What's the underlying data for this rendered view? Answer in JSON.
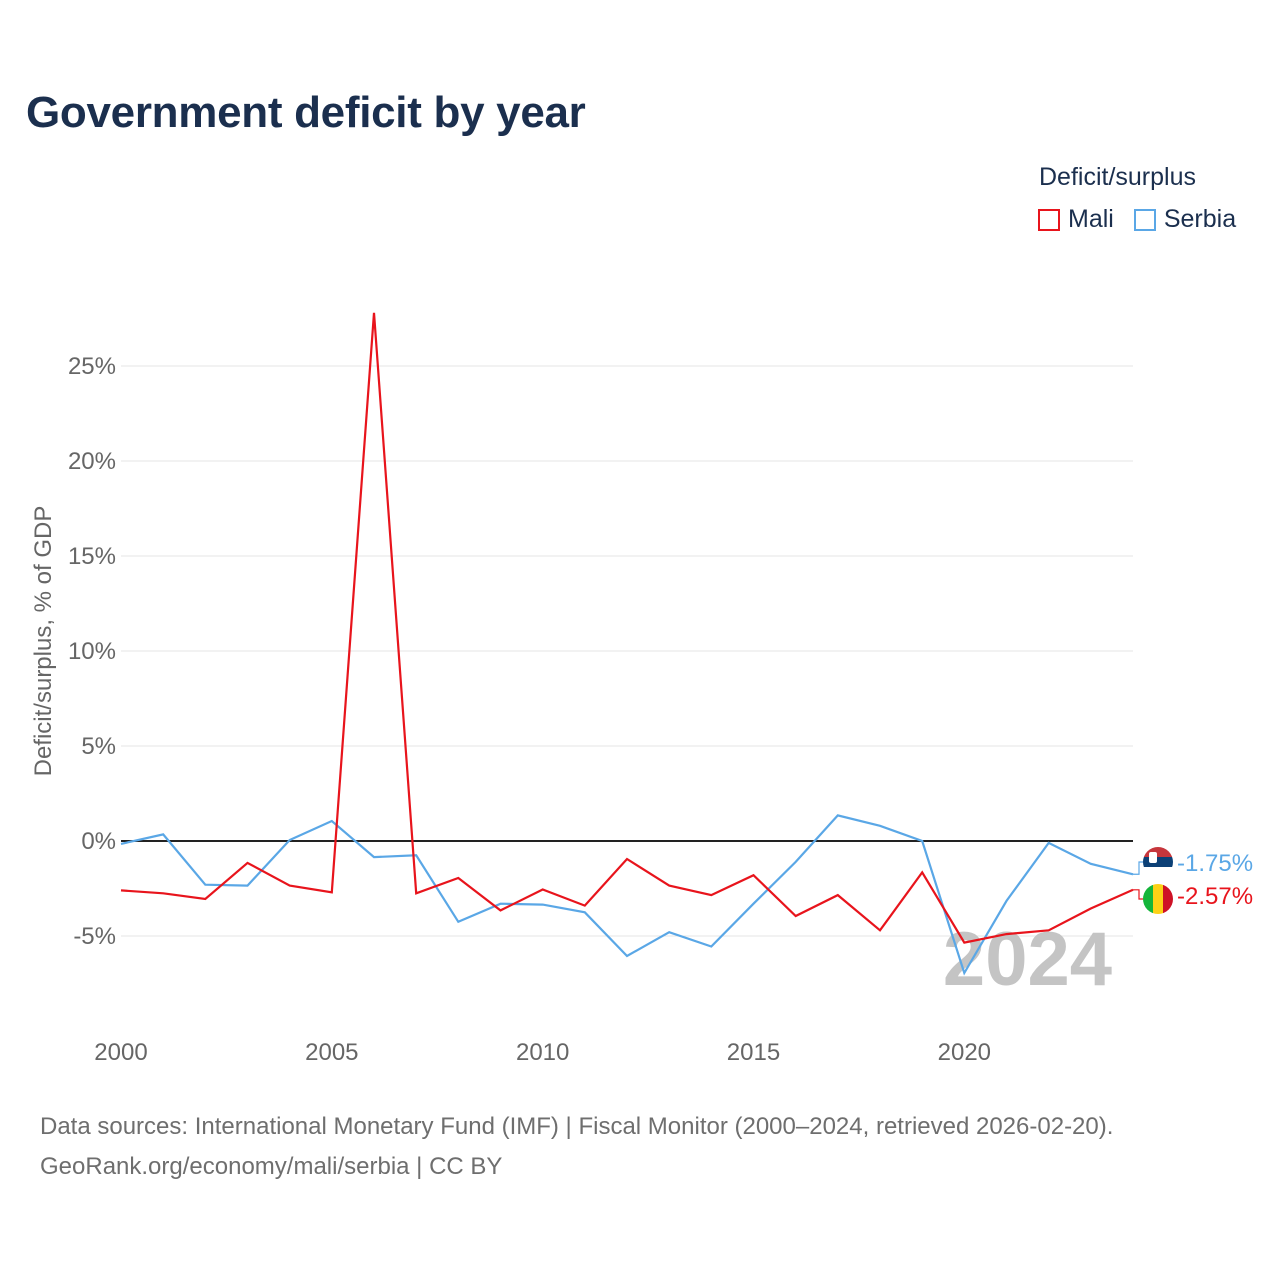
{
  "header": {
    "title": "Government deficit by year"
  },
  "legend": {
    "title": "Deficit/surplus",
    "items": [
      {
        "label": "Mali",
        "color": "#e8141c"
      },
      {
        "label": "Serbia",
        "color": "#5aa7e6"
      }
    ]
  },
  "chart_data": {
    "type": "line",
    "title": "Government deficit by year",
    "xlabel": "",
    "ylabel": "Deficit/surplus, % of GDP",
    "x": [
      2000,
      2001,
      2002,
      2003,
      2004,
      2005,
      2006,
      2007,
      2008,
      2009,
      2010,
      2011,
      2012,
      2013,
      2014,
      2015,
      2016,
      2017,
      2018,
      2019,
      2020,
      2021,
      2022,
      2023,
      2024
    ],
    "xlim": [
      2000,
      2024
    ],
    "ylim": [
      -10,
      30
    ],
    "yticks": [
      -5,
      0,
      5,
      10,
      15,
      20,
      25
    ],
    "ytick_labels": [
      "-5%",
      "0%",
      "5%",
      "10%",
      "15%",
      "20%",
      "25%"
    ],
    "xticks": [
      2000,
      2005,
      2010,
      2015,
      2020
    ],
    "xtick_labels": [
      "2000",
      "2005",
      "2010",
      "2015",
      "2020"
    ],
    "grid": true,
    "year_watermark": "2024",
    "series": [
      {
        "name": "Mali",
        "color": "#e8141c",
        "values": [
          -2.6,
          -2.75,
          -3.05,
          -1.15,
          -2.35,
          -2.7,
          27.8,
          -2.75,
          -1.95,
          -3.65,
          -2.55,
          -3.4,
          -0.95,
          -2.35,
          -2.85,
          -1.8,
          -3.95,
          -2.85,
          -4.7,
          -1.65,
          -5.35,
          -4.9,
          -4.7,
          -3.55,
          -2.57
        ],
        "end_label": "-2.57%"
      },
      {
        "name": "Serbia",
        "color": "#5aa7e6",
        "values": [
          -0.15,
          0.35,
          -2.3,
          -2.35,
          0.05,
          1.05,
          -0.85,
          -0.75,
          -4.25,
          -3.3,
          -3.35,
          -3.75,
          -6.05,
          -4.8,
          -5.55,
          -3.3,
          -1.1,
          1.35,
          0.8,
          0.0,
          -6.95,
          -3.15,
          -0.1,
          -1.2,
          -1.75
        ],
        "end_label": "-1.75%"
      }
    ]
  },
  "footer": {
    "source": "Data sources: International Monetary Fund (IMF) | Fiscal Monitor (2000–2024, retrieved 2026-02-20).",
    "credit": "GeoRank.org/economy/mali/serbia | CC BY"
  }
}
